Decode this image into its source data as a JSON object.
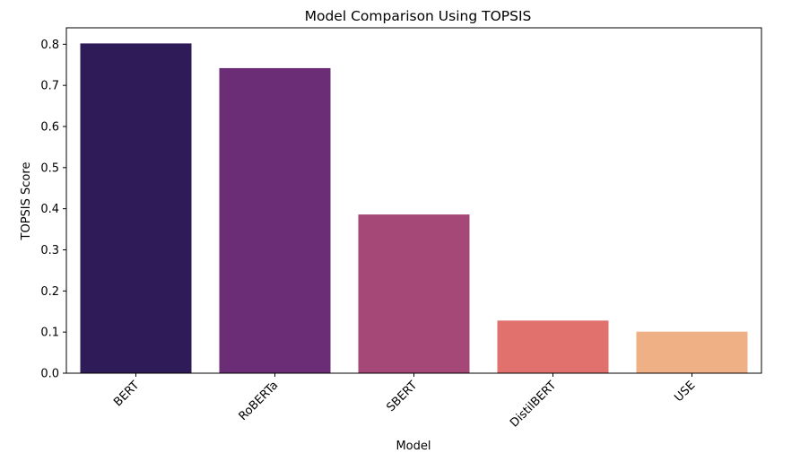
{
  "chart_data": {
    "type": "bar",
    "title": "Model Comparison Using TOPSIS",
    "xlabel": "Model",
    "ylabel": "TOPSIS Score",
    "categories": [
      "BERT",
      "RoBERTa",
      "SBERT",
      "DistilBERT",
      "USE"
    ],
    "values": [
      0.802,
      0.742,
      0.386,
      0.128,
      0.101
    ],
    "colors": [
      "#2f1b57",
      "#6b2d75",
      "#a54878",
      "#e0716d",
      "#efb085"
    ],
    "ylim": [
      0,
      0.84
    ],
    "yticks": [
      0.0,
      0.1,
      0.2,
      0.3,
      0.4,
      0.5,
      0.6,
      0.7,
      0.8
    ],
    "ytick_labels": [
      "0.0",
      "0.1",
      "0.2",
      "0.3",
      "0.4",
      "0.5",
      "0.6",
      "0.7",
      "0.8"
    ],
    "grid": false,
    "legend": "none"
  }
}
